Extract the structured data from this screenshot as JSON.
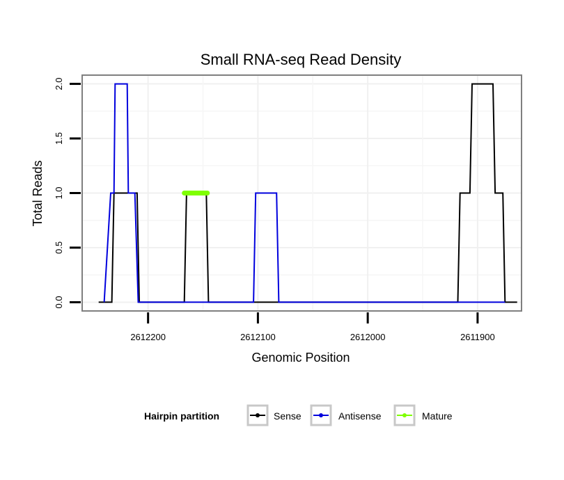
{
  "chart_data": {
    "type": "line",
    "title": "Small RNA-seq Read Density",
    "xlabel": "Genomic Position",
    "ylabel": "Total Reads",
    "xlim": [
      2612260,
      2611860
    ],
    "x_reversed": true,
    "ylim": [
      -0.08,
      2.08
    ],
    "x_ticks": [
      2612200,
      2612100,
      2612000,
      2611900
    ],
    "x_tick_labels": [
      "2612200",
      "2612100",
      "2612000",
      "2611900"
    ],
    "y_ticks": [
      0,
      0.5,
      1,
      1.5,
      2
    ],
    "y_tick_labels": [
      "0.0",
      "0.5",
      "1.0",
      "1.5",
      "2.0"
    ],
    "grid": true,
    "legend": {
      "title": "Hairpin partition",
      "position": "bottom",
      "entries": [
        "Sense",
        "Antisense",
        "Mature"
      ]
    },
    "series": [
      {
        "name": "Sense",
        "color": "#000000",
        "width": 2,
        "points": [
          [
            2612245,
            0
          ],
          [
            2612233,
            0
          ],
          [
            2612231,
            1
          ],
          [
            2612210,
            1
          ],
          [
            2612208,
            0
          ],
          [
            2612167,
            0
          ],
          [
            2612165,
            1
          ],
          [
            2612147,
            1
          ],
          [
            2612145,
            0
          ],
          [
            2611918,
            0
          ],
          [
            2611916,
            1
          ],
          [
            2611907,
            1
          ],
          [
            2611905,
            2
          ],
          [
            2611886,
            2
          ],
          [
            2611884,
            1
          ],
          [
            2611877,
            1
          ],
          [
            2611875,
            0
          ],
          [
            2611864,
            0
          ]
        ]
      },
      {
        "name": "Antisense",
        "color": "#0000dd",
        "width": 2,
        "points": [
          [
            2612240,
            0
          ],
          [
            2612234,
            1
          ],
          [
            2612231,
            1
          ],
          [
            2612230,
            2
          ],
          [
            2612219,
            2
          ],
          [
            2612218,
            1
          ],
          [
            2612212,
            1
          ],
          [
            2612209,
            0
          ],
          [
            2612104,
            0
          ],
          [
            2612102,
            1
          ],
          [
            2612083,
            1
          ],
          [
            2612081,
            0
          ],
          [
            2611875,
            0
          ]
        ]
      },
      {
        "name": "Mature",
        "color": "#7fff00",
        "width": 7,
        "points": [
          [
            2612167,
            1
          ],
          [
            2612146,
            1
          ]
        ]
      }
    ]
  }
}
